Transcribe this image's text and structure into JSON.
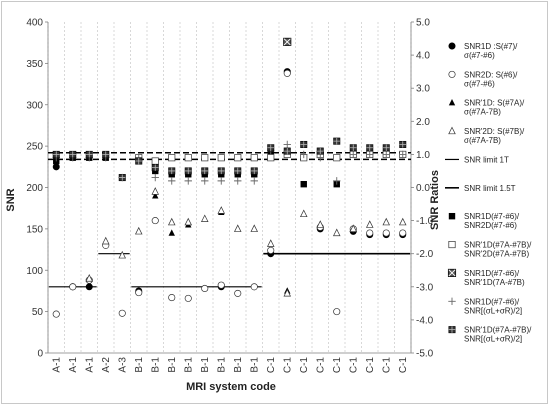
{
  "chart_data": {
    "type": "scatter",
    "xlabel": "MRI system code",
    "ylabel_left": "SNR",
    "ylabel_right": "SNR Ratios",
    "categories": [
      "A-1",
      "A-1",
      "A-1",
      "A-2",
      "A-3",
      "B-1",
      "B-1",
      "B-1",
      "B-1",
      "B-1",
      "B-1",
      "B-1",
      "B-1",
      "C-1",
      "C-1",
      "C-1",
      "C-1",
      "C-1",
      "C-1",
      "C-1",
      "C-1",
      "C-1"
    ],
    "left_axis": {
      "min": 0,
      "max": 400,
      "step": 50,
      "ticks": [
        "0",
        "50",
        "100",
        "150",
        "200",
        "250",
        "300",
        "350",
        "400"
      ]
    },
    "right_axis": {
      "min": -5,
      "max": 5,
      "step": 1,
      "ticks": [
        "-5.0",
        "-4.0",
        "-3.0",
        "-2.0",
        "-1.0",
        "0.0",
        "1.0",
        "2.0",
        "3.0",
        "4.0",
        "5.0"
      ]
    },
    "grid": "vertical dashed",
    "legend_position": "right",
    "series": [
      {
        "name": "SNR1D :S(#7)/\nσ(#7-#6)",
        "axis": "left",
        "marker": "filled-circle",
        "values": [
          225,
          80,
          80,
          null,
          null,
          75,
          null,
          null,
          null,
          null,
          80,
          null,
          null,
          120,
          340,
          null,
          150,
          null,
          147,
          143,
          143,
          143
        ]
      },
      {
        "name": "SNR2D: S(#6)/\nσ(#7-#6)",
        "axis": "left",
        "marker": "open-circle",
        "values": [
          47,
          80,
          88,
          130,
          48,
          73,
          160,
          67,
          66,
          78,
          82,
          72,
          80,
          124,
          338,
          null,
          152,
          50,
          150,
          145,
          145,
          145
        ]
      },
      {
        "name": "SNR'1D: S(#7A)/\nσ(#7A-7B)",
        "axis": "left",
        "marker": "filled-triangle",
        "values": [
          null,
          null,
          null,
          null,
          null,
          null,
          190,
          145,
          155,
          null,
          170,
          null,
          null,
          null,
          75,
          null,
          null,
          null,
          null,
          null,
          null,
          null
        ]
      },
      {
        "name": "SNR'2D: S(#7B)/\nσ(#7A-7B)",
        "axis": "left",
        "marker": "open-triangle",
        "values": [
          null,
          null,
          90,
          135,
          118,
          147,
          195,
          158,
          158,
          162,
          172,
          150,
          150,
          132,
          72,
          168,
          155,
          145,
          150,
          155,
          158,
          158
        ]
      },
      {
        "name": "SNR limit 1T",
        "axis": "left",
        "marker": "line",
        "segments": [
          {
            "from": 0,
            "to": 2,
            "value": 80
          },
          {
            "from": 3,
            "to": 4,
            "value": 120
          },
          {
            "from": 5,
            "to": 12,
            "value": 80
          }
        ]
      },
      {
        "name": "SNR limit 1.5T",
        "axis": "left",
        "marker": "line",
        "segments": [
          {
            "from": 13,
            "to": 21,
            "value": 120
          }
        ]
      },
      {
        "name": "SNR1D(#7-#6)/\nSNR2D(#7-#6)",
        "axis": "right",
        "marker": "filled-square",
        "values": [
          0.8,
          0.9,
          0.9,
          0.9,
          0.3,
          0.9,
          0.5,
          0.4,
          0.4,
          0.4,
          0.4,
          0.4,
          0.4,
          1.1,
          4.4,
          0.1,
          1.0,
          0.1,
          1.1,
          1.0,
          1.0,
          1.0
        ]
      },
      {
        "name": "SNR'1D(#7A-#7B)/\nSNR'2D(#7A-#7B)",
        "axis": "right",
        "marker": "open-square",
        "values": [
          null,
          null,
          null,
          null,
          null,
          0.9,
          0.8,
          0.9,
          0.9,
          0.9,
          0.9,
          0.9,
          0.9,
          0.9,
          1.0,
          0.9,
          1.0,
          0.9,
          1.0,
          1.0,
          1.0,
          1.0
        ]
      },
      {
        "name": "SNR1D(#7-#6)/\nSNR'1D(7A-#7B)",
        "axis": "right",
        "marker": "x-square",
        "values": [
          null,
          null,
          null,
          null,
          null,
          null,
          null,
          null,
          null,
          null,
          null,
          null,
          null,
          null,
          4.4,
          null,
          null,
          null,
          null,
          null,
          null,
          null
        ]
      },
      {
        "name": "SNR1D(#7-#6)/\nSNR[(σL+σR)/2]",
        "axis": "right",
        "marker": "plus",
        "values": [
          0.9,
          0.9,
          0.9,
          0.9,
          0.3,
          0.9,
          0.3,
          0.2,
          0.2,
          0.2,
          0.2,
          0.2,
          0.2,
          1.1,
          1.3,
          1.0,
          0.9,
          0.2,
          1.0,
          1.0,
          1.0,
          1.0
        ]
      },
      {
        "name": "SNR'1D(#7A-#7B)/\nSNR[(σL+σR)/2]",
        "axis": "right",
        "marker": "hatched-square",
        "values": [
          1.0,
          1.0,
          1.0,
          1.0,
          0.3,
          0.8,
          0.6,
          0.5,
          0.5,
          0.5,
          0.5,
          0.5,
          0.5,
          1.2,
          1.1,
          1.3,
          1.1,
          1.4,
          1.2,
          1.2,
          1.2,
          1.3
        ]
      }
    ],
    "reference_lines_right": [
      {
        "value": 1.05,
        "style": "dashed"
      },
      {
        "value": 0.85,
        "style": "dashed"
      }
    ]
  }
}
